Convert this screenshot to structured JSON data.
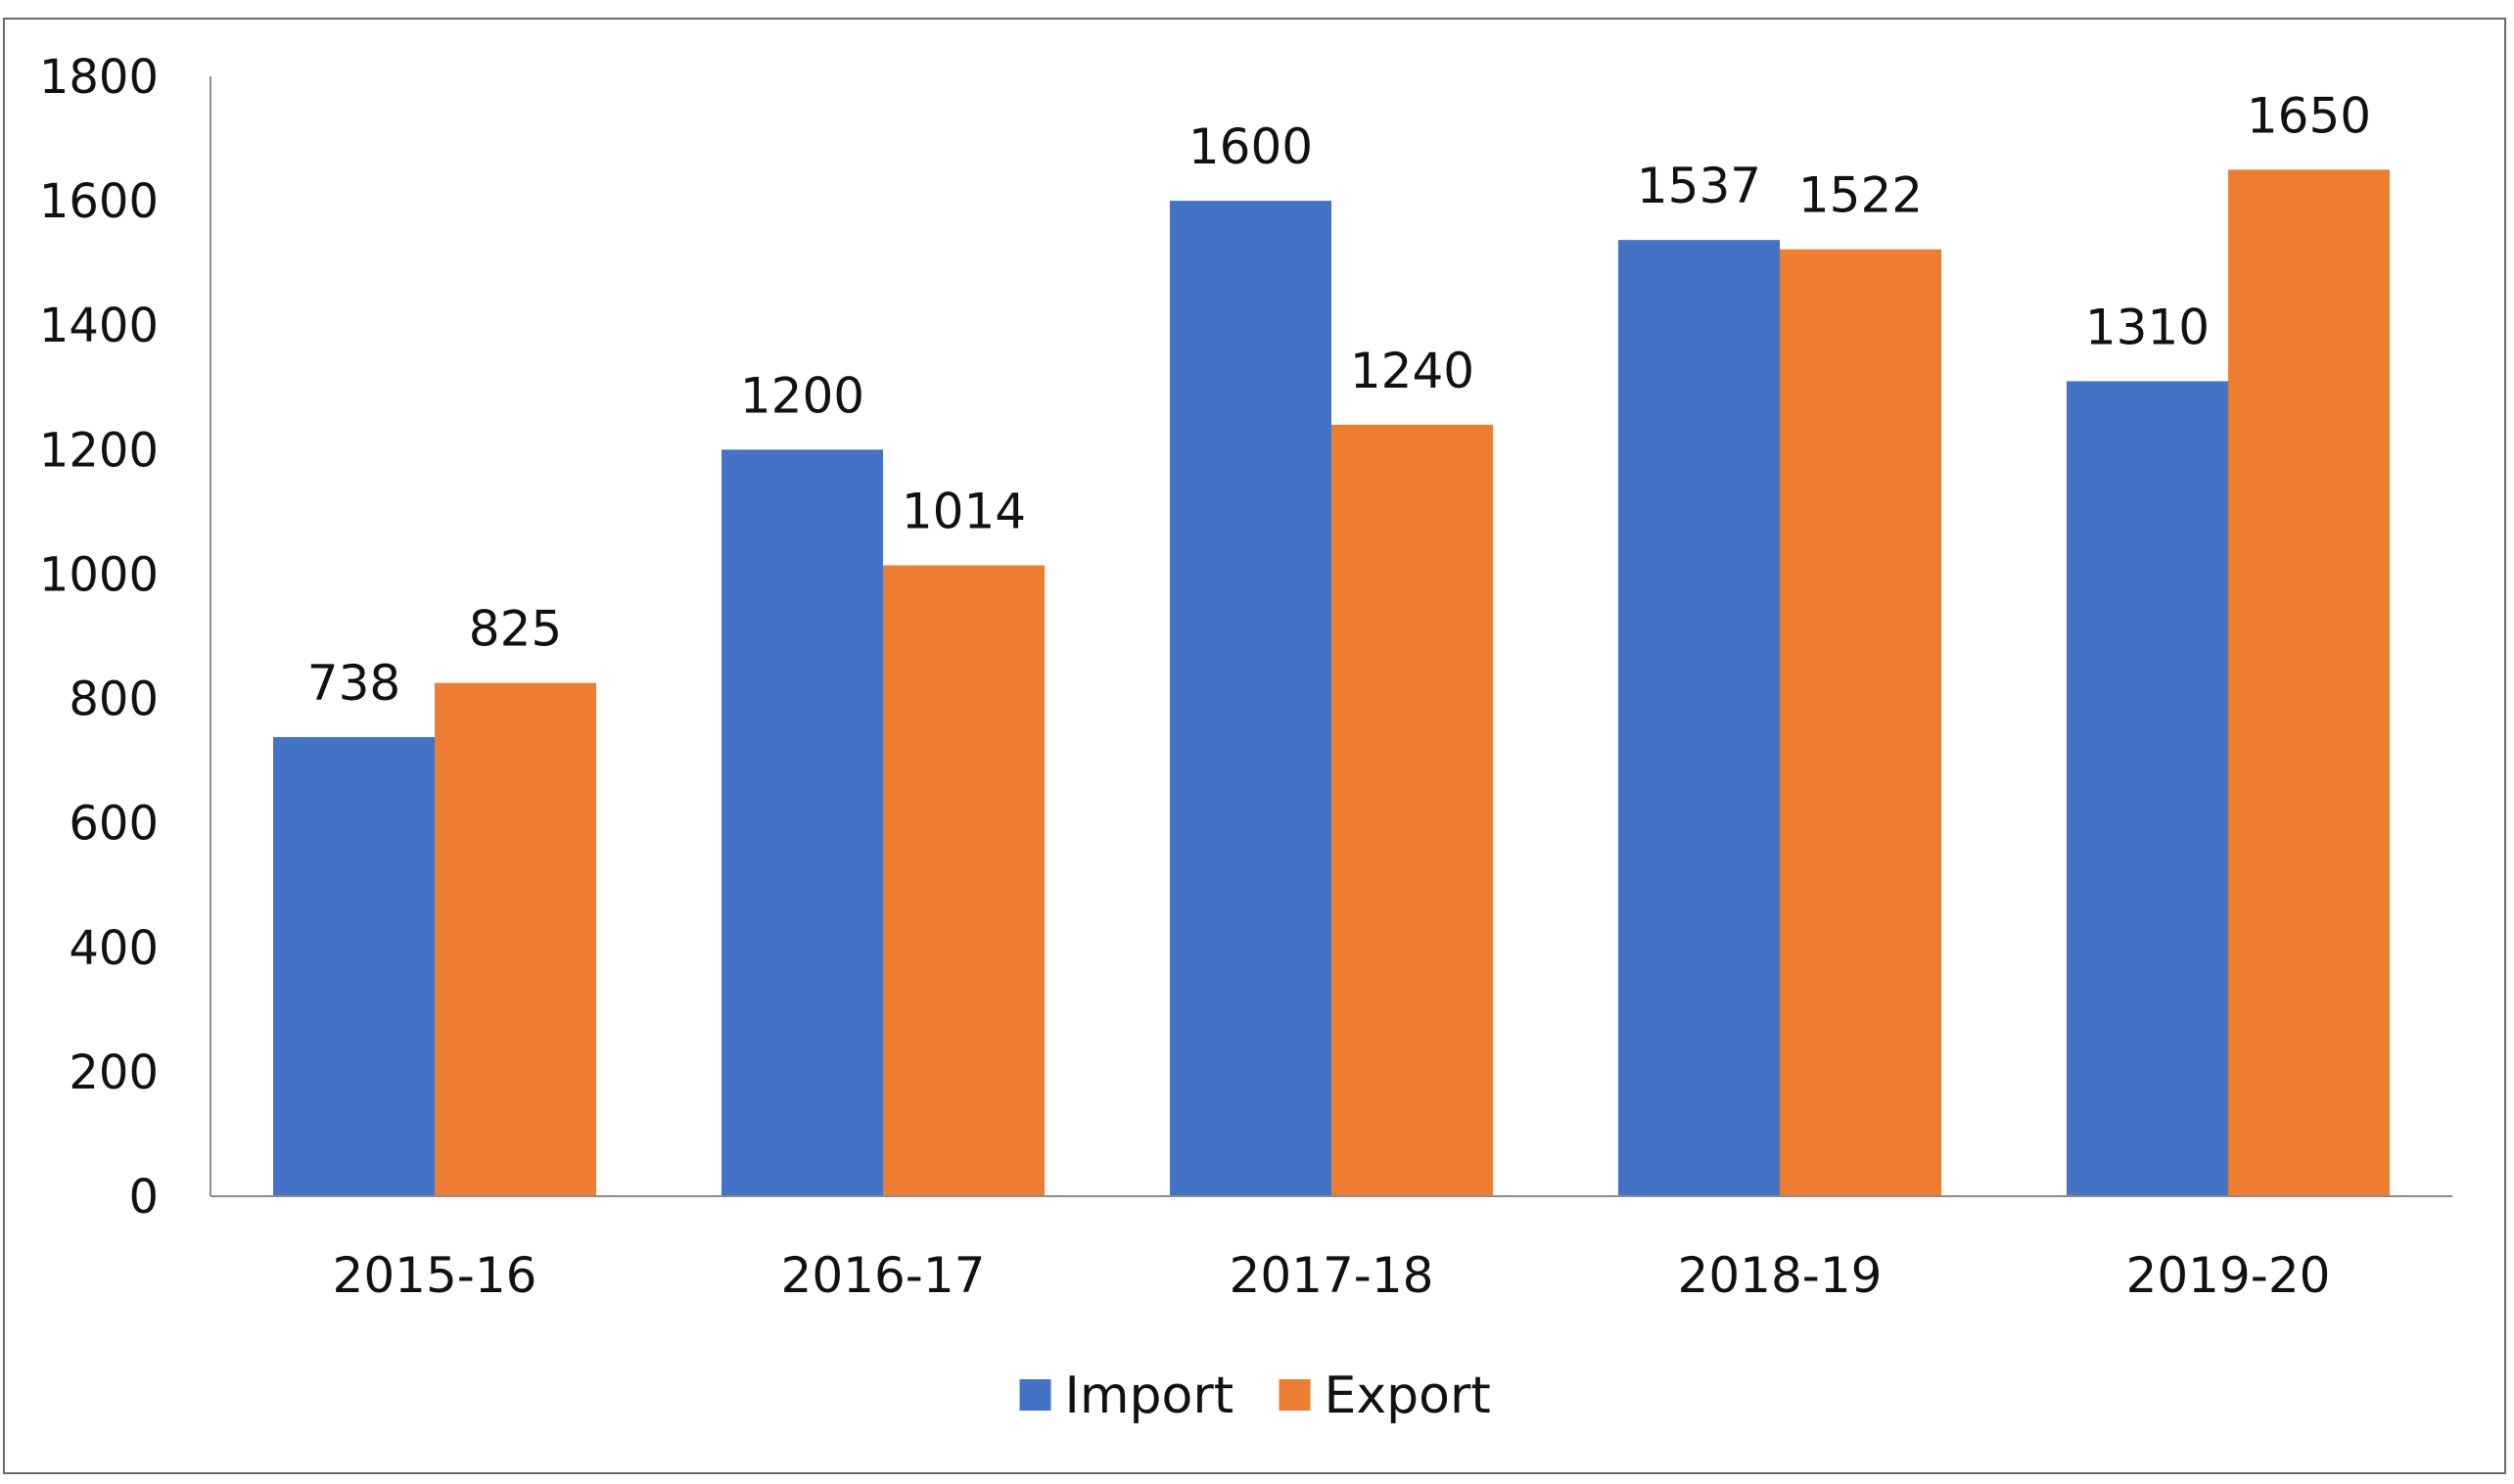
{
  "chart_data": {
    "type": "bar",
    "title": "",
    "xlabel": "",
    "ylabel": "",
    "categories": [
      "2015-16",
      "2016-17",
      "2017-18",
      "2018-19",
      "2019-20"
    ],
    "series": [
      {
        "name": "Import",
        "color": "#4472C4",
        "values": [
          738,
          1200,
          1600,
          1537,
          1310
        ]
      },
      {
        "name": "Export",
        "color": "#ED7D31",
        "values": [
          825,
          1014,
          1240,
          1522,
          1650
        ]
      }
    ],
    "ylim": [
      0,
      1800
    ],
    "yticks": [
      "0",
      "200",
      "400",
      "600",
      "800",
      "1000",
      "1200",
      "1400",
      "1600",
      "1800"
    ],
    "grid": false,
    "legend_position": "bottom",
    "data_labels": true
  }
}
